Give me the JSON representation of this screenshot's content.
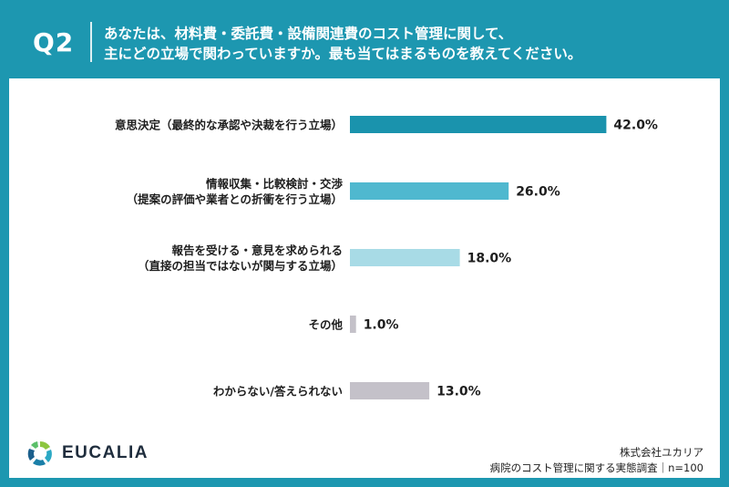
{
  "header": {
    "q_label": "Q2",
    "question_line1": "あなたは、材料費・委託費・設備関連費のコスト管理に関して、",
    "question_line2": "主にどの立場で関わっていますか。最も当てはまるものを教えてください。",
    "bg_color": "#1d97b0"
  },
  "chart_data": {
    "type": "bar",
    "orientation": "horizontal",
    "unit": "%",
    "categories": [
      [
        "意思決定（最終的な承認や決裁を行う立場）"
      ],
      [
        "情報収集・比較検討・交渉",
        "（提案の評価や業者との折衝を行う立場）"
      ],
      [
        "報告を受ける・意見を求められる",
        "（直接の担当ではないが関与する立場）"
      ],
      [
        "その他"
      ],
      [
        "わからない/答えられない"
      ]
    ],
    "values": [
      42.0,
      26.0,
      18.0,
      1.0,
      13.0
    ],
    "value_labels": [
      "42.0%",
      "26.0%",
      "18.0%",
      "1.0%",
      "13.0%"
    ],
    "colors": [
      "#1a93ad",
      "#4fb8cf",
      "#a8dbe6",
      "#c4c1c9",
      "#c4c1c9"
    ],
    "xlim": [
      0,
      60
    ],
    "grid": false,
    "legend": "none"
  },
  "footer": {
    "logo_icon": "eucalia-leaf-ring-icon",
    "brand": "EUCALIA",
    "company": "株式会社ユカリア",
    "survey_note": "病院のコスト管理に関する実態調査｜n=100"
  }
}
